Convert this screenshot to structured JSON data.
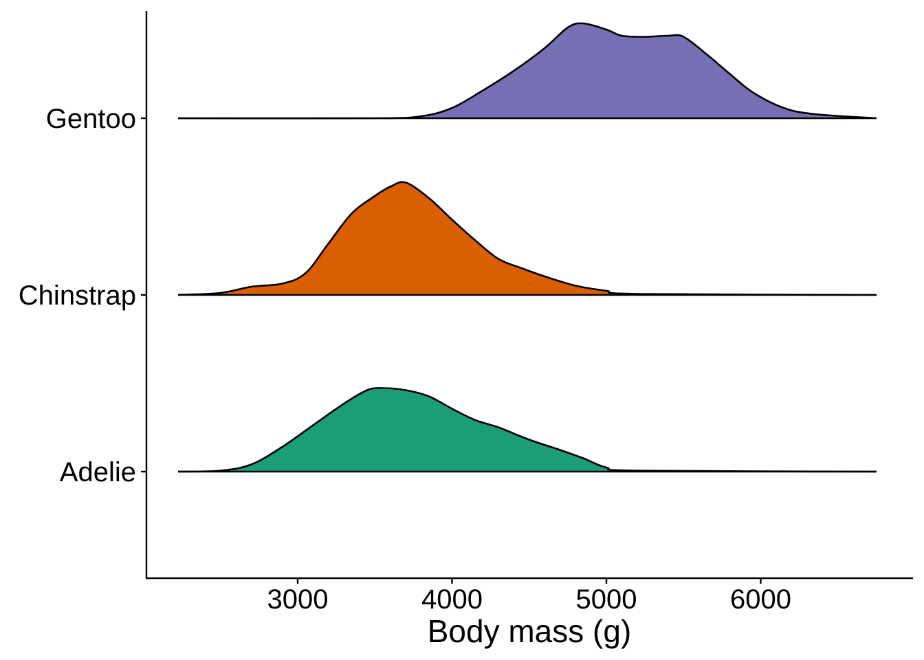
{
  "chart_data": {
    "type": "ridgeline",
    "title": "",
    "xlabel": "Body mass (g)",
    "ylabel": "",
    "xlim": [
      2200,
      6750
    ],
    "x_ticks": [
      3000,
      4000,
      5000,
      6000
    ],
    "x_tick_labels": [
      "3000",
      "4000",
      "5000",
      "6000"
    ],
    "grid": false,
    "legend": "none",
    "series": [
      {
        "name": "Adelie",
        "color": "#1b9e77",
        "points": [
          [
            2225,
            0.0
          ],
          [
            2500,
            0.01
          ],
          [
            2700,
            0.07
          ],
          [
            2900,
            0.24
          ],
          [
            3100,
            0.45
          ],
          [
            3300,
            0.66
          ],
          [
            3450,
            0.79
          ],
          [
            3550,
            0.81
          ],
          [
            3700,
            0.79
          ],
          [
            3850,
            0.73
          ],
          [
            4000,
            0.61
          ],
          [
            4150,
            0.5
          ],
          [
            4300,
            0.43
          ],
          [
            4500,
            0.31
          ],
          [
            4700,
            0.21
          ],
          [
            4850,
            0.13
          ],
          [
            5000,
            0.04
          ],
          [
            5200,
            0.01
          ],
          [
            6750,
            0.0
          ]
        ]
      },
      {
        "name": "Chinstrap",
        "color": "#d95f02",
        "points": [
          [
            2225,
            0.0
          ],
          [
            2500,
            0.02
          ],
          [
            2700,
            0.08
          ],
          [
            2900,
            0.11
          ],
          [
            3050,
            0.21
          ],
          [
            3200,
            0.5
          ],
          [
            3350,
            0.79
          ],
          [
            3500,
            0.96
          ],
          [
            3600,
            1.05
          ],
          [
            3700,
            1.09
          ],
          [
            3850,
            0.94
          ],
          [
            4000,
            0.73
          ],
          [
            4150,
            0.53
          ],
          [
            4300,
            0.35
          ],
          [
            4450,
            0.26
          ],
          [
            4600,
            0.18
          ],
          [
            4800,
            0.09
          ],
          [
            5000,
            0.04
          ],
          [
            5200,
            0.01
          ],
          [
            6750,
            0.0
          ]
        ]
      },
      {
        "name": "Gentoo",
        "color": "#7570b3",
        "points": [
          [
            2225,
            0.0
          ],
          [
            3500,
            0.0
          ],
          [
            3800,
            0.02
          ],
          [
            4000,
            0.1
          ],
          [
            4200,
            0.27
          ],
          [
            4400,
            0.46
          ],
          [
            4600,
            0.68
          ],
          [
            4750,
            0.88
          ],
          [
            4850,
            0.92
          ],
          [
            5000,
            0.86
          ],
          [
            5100,
            0.8
          ],
          [
            5250,
            0.79
          ],
          [
            5400,
            0.8
          ],
          [
            5500,
            0.79
          ],
          [
            5650,
            0.62
          ],
          [
            5800,
            0.43
          ],
          [
            5950,
            0.25
          ],
          [
            6150,
            0.1
          ],
          [
            6350,
            0.04
          ],
          [
            6750,
            0.0
          ]
        ]
      }
    ]
  }
}
